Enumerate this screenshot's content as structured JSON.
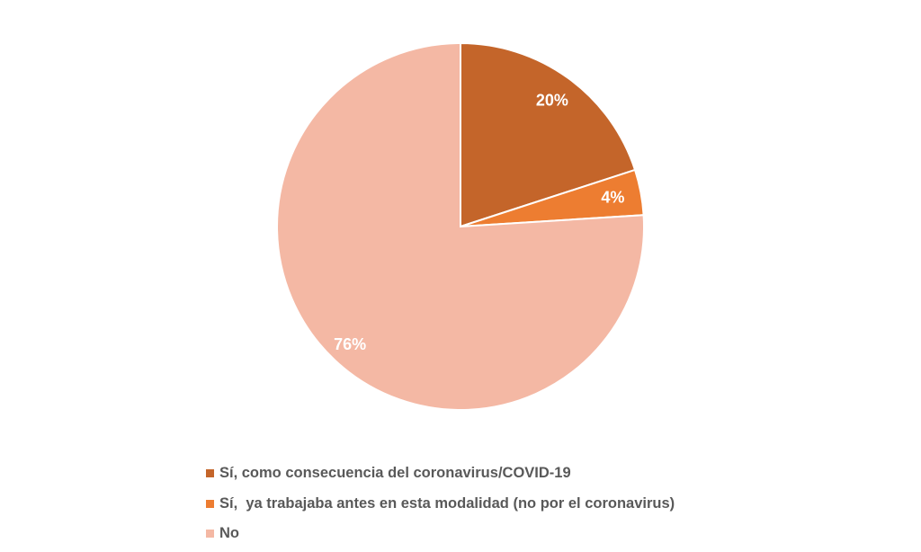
{
  "chart_data": {
    "type": "pie",
    "title": "",
    "start_angle": "top, clockwise",
    "legend_position": "bottom",
    "categories": [
      "Sí, como consecuencia del coronavirus/COVID-19",
      "Sí,  ya trabajaba antes en esta modalidad (no por el coronavirus)",
      "No"
    ],
    "values": [
      20,
      4,
      76
    ],
    "data_labels": [
      "20%",
      "4%",
      "76%"
    ],
    "colors": [
      "#C4652A",
      "#ED7D31",
      "#F4B8A4"
    ],
    "label_color": "#FFFFFF"
  }
}
